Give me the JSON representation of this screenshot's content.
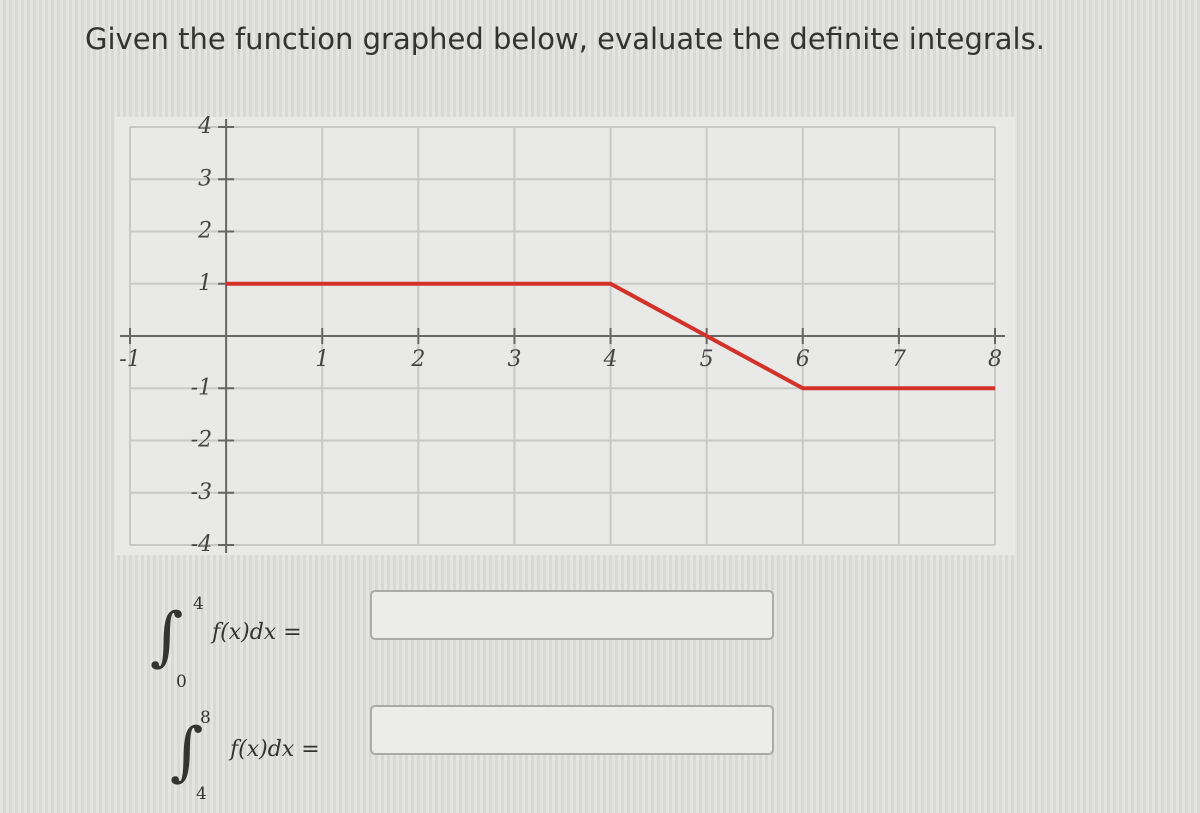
{
  "question": "Given the function graphed below, evaluate the definite integrals.",
  "chart_data": {
    "type": "line",
    "x": [
      0,
      4,
      6,
      8
    ],
    "series": [
      {
        "color": "#d3322b",
        "values": [
          1,
          1,
          -1,
          -1
        ]
      }
    ],
    "xlim": [
      -1,
      8
    ],
    "ylim": [
      -4,
      4
    ],
    "xticks": [
      -1,
      1,
      2,
      3,
      4,
      5,
      6,
      7,
      8
    ],
    "yticks": [
      -4,
      -3,
      -2,
      -1,
      1,
      2,
      3,
      4
    ],
    "grid": true
  },
  "integrals": [
    {
      "lower": 0,
      "upper": 4,
      "integrand": "f(x)dx ="
    },
    {
      "lower": 4,
      "upper": 8,
      "integrand": "f(x)dx ="
    }
  ]
}
